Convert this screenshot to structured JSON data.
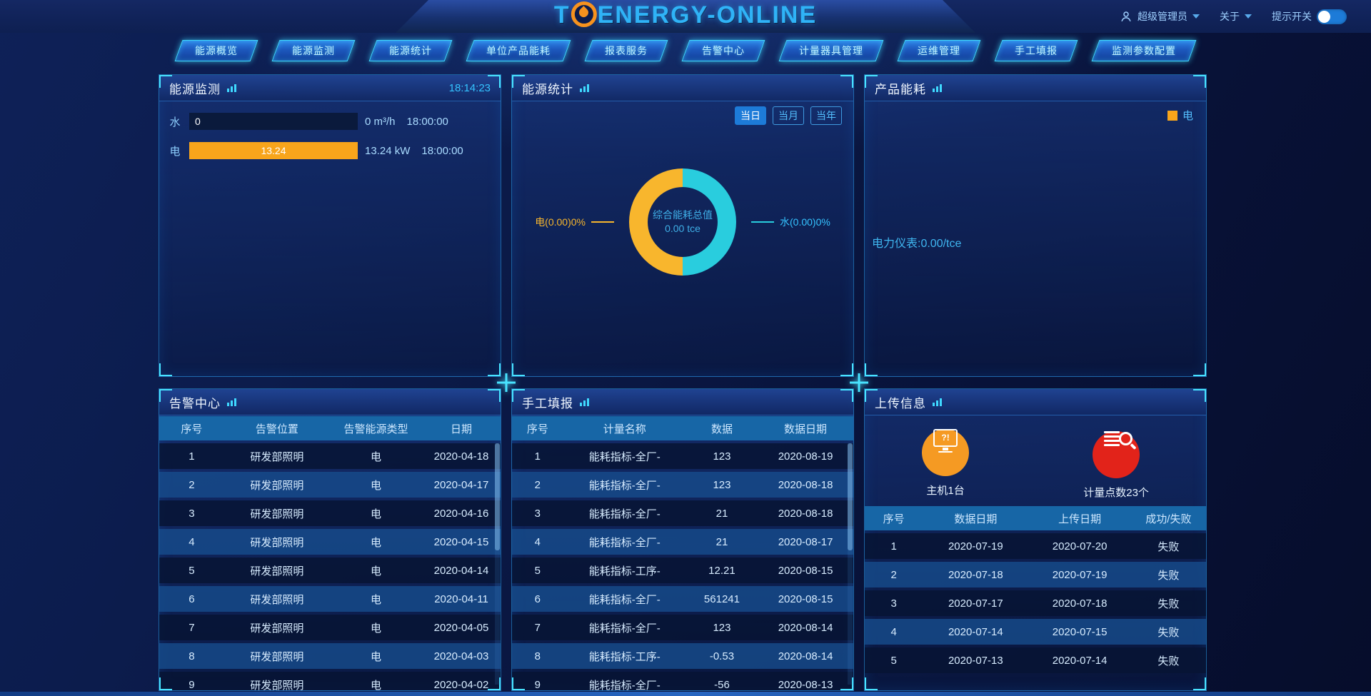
{
  "header": {
    "logo": {
      "prefix": "T",
      "suffix": "ENERGY-ONLINE"
    },
    "user": "超级管理员",
    "about": "关于",
    "tip_label": "提示开关",
    "tip_enabled": true
  },
  "nav": {
    "items": [
      "能源概览",
      "能源监测",
      "能源统计",
      "单位产品能耗",
      "报表服务",
      "告警中心",
      "计量器具管理",
      "运维管理",
      "手工填报",
      "监测参数配置"
    ]
  },
  "panels": {
    "energy_monitor": {
      "title": "能源监测",
      "time": "18:14:23",
      "rows": [
        {
          "label": "水",
          "bar_value": "0",
          "bar_percent": 0,
          "bar_color": "#f8a51b",
          "reading": "0 m³/h",
          "time": "18:00:00"
        },
        {
          "label": "电",
          "bar_value": "13.24",
          "bar_percent": 100,
          "bar_color": "#f8a51b",
          "reading": "13.24 kW",
          "time": "18:00:00"
        }
      ]
    },
    "energy_stats": {
      "title": "能源统计",
      "tabs": [
        "当日",
        "当月",
        "当年"
      ],
      "active_tab": "当日",
      "chart": {
        "center_line1": "综合能耗总值",
        "center_line2": "0.00 tce",
        "left_label": "电(0.00)0%",
        "right_label": "水(0.00)0%"
      }
    },
    "product_energy": {
      "title": "产品能耗",
      "legend": "电",
      "legend_color": "#f8a51b",
      "note": "电力仪表:0.00/tce"
    },
    "alarm_center": {
      "title": "告警中心",
      "columns": [
        "序号",
        "告警位置",
        "告警能源类型",
        "日期"
      ],
      "rows": [
        [
          "1",
          "研发部照明",
          "电",
          "2020-04-18"
        ],
        [
          "2",
          "研发部照明",
          "电",
          "2020-04-17"
        ],
        [
          "3",
          "研发部照明",
          "电",
          "2020-04-16"
        ],
        [
          "4",
          "研发部照明",
          "电",
          "2020-04-15"
        ],
        [
          "5",
          "研发部照明",
          "电",
          "2020-04-14"
        ],
        [
          "6",
          "研发部照明",
          "电",
          "2020-04-11"
        ],
        [
          "7",
          "研发部照明",
          "电",
          "2020-04-05"
        ],
        [
          "8",
          "研发部照明",
          "电",
          "2020-04-03"
        ],
        [
          "9",
          "研发部照明",
          "电",
          "2020-04-02"
        ]
      ]
    },
    "manual_entry": {
      "title": "手工填报",
      "columns": [
        "序号",
        "计量名称",
        "数据",
        "数据日期"
      ],
      "rows": [
        [
          "1",
          "能耗指标-全厂-",
          "123",
          "2020-08-19"
        ],
        [
          "2",
          "能耗指标-全厂-",
          "123",
          "2020-08-18"
        ],
        [
          "3",
          "能耗指标-全厂-",
          "21",
          "2020-08-18"
        ],
        [
          "4",
          "能耗指标-全厂-",
          "21",
          "2020-08-17"
        ],
        [
          "5",
          "能耗指标-工序-",
          "12.21",
          "2020-08-15"
        ],
        [
          "6",
          "能耗指标-全厂-",
          "561241",
          "2020-08-15"
        ],
        [
          "7",
          "能耗指标-全厂-",
          "123",
          "2020-08-14"
        ],
        [
          "8",
          "能耗指标-工序-",
          "-0.53",
          "2020-08-14"
        ],
        [
          "9",
          "能耗指标-全厂-",
          "-56",
          "2020-08-13"
        ]
      ]
    },
    "upload_info": {
      "title": "上传信息",
      "stats": [
        {
          "label": "主机1台",
          "icon": "monitor-alert-icon",
          "glyph": "?!",
          "color": "#f59a23"
        },
        {
          "label": "计量点数23个",
          "icon": "meter-search-icon",
          "color": "#e2231a"
        }
      ],
      "columns": [
        "序号",
        "数据日期",
        "上传日期",
        "成功/失败"
      ],
      "rows": [
        [
          "1",
          "2020-07-19",
          "2020-07-20",
          "失败"
        ],
        [
          "2",
          "2020-07-18",
          "2020-07-19",
          "失败"
        ],
        [
          "3",
          "2020-07-17",
          "2020-07-18",
          "失败"
        ],
        [
          "4",
          "2020-07-14",
          "2020-07-15",
          "失败"
        ],
        [
          "5",
          "2020-07-13",
          "2020-07-14",
          "失败"
        ]
      ]
    }
  },
  "chart_data": [
    {
      "type": "pie",
      "donut": true,
      "title": "综合能耗总值",
      "center_value": "0.00 tce",
      "series": [
        {
          "name": "电",
          "value": 0.0,
          "percent": 0,
          "color": "#f8b62d"
        },
        {
          "name": "水",
          "value": 0.0,
          "percent": 0,
          "color": "#29cdde"
        }
      ],
      "legend_position": "callout"
    },
    {
      "type": "bar",
      "orientation": "horizontal",
      "categories": [
        "水",
        "电"
      ],
      "values": [
        0,
        13.24
      ],
      "units": [
        "m³/h",
        "kW"
      ],
      "timestamp": "18:00:00",
      "colors": [
        "#0a1a3c",
        "#f8a51b"
      ]
    }
  ]
}
